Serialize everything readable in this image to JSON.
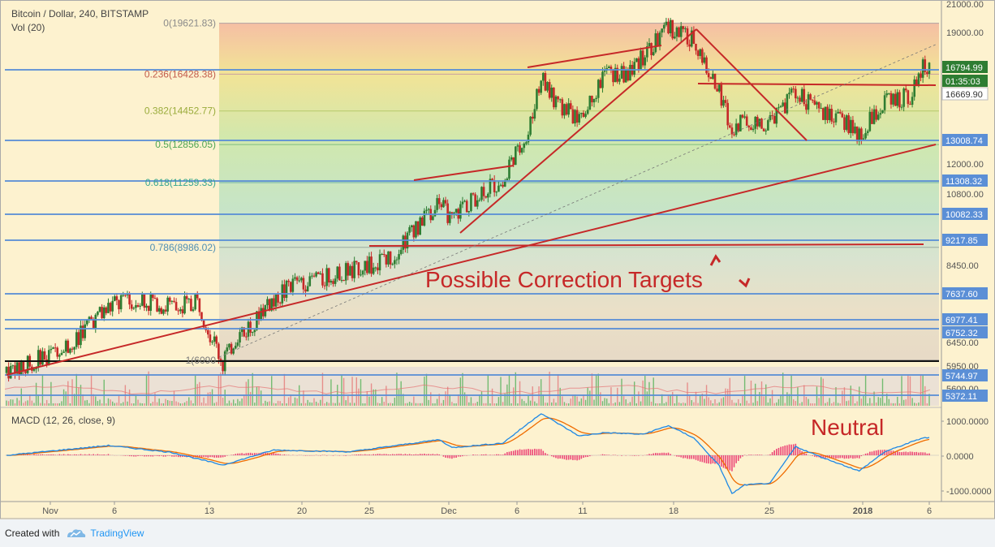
{
  "header": {
    "symbol_line": "Bitcoin / Dollar, 240, BITSTAMP",
    "volume_line": "Vol (20)",
    "macd_line": "MACD (12, 26, close, 9)"
  },
  "colors": {
    "background": "#fdf2cf",
    "candle_up": "#2e7d32",
    "candle_down": "#c62828",
    "trendline": "#c62828",
    "level_line": "#5b8fd6",
    "annotation_text": "#c62828",
    "macd_line": "#1e88e5",
    "signal_line": "#ef6c00",
    "histogram": "#e91e63"
  },
  "footer": {
    "created_with": "Created with",
    "brand": "TradingView"
  },
  "chart_data": {
    "type": "candlestick",
    "symbol": "Bitcoin / Dollar",
    "interval": "240",
    "exchange": "BITSTAMP",
    "price_axis": {
      "range": [
        5300,
        21000
      ],
      "ticks": [
        "21000.00",
        "19000.00",
        "16669.90",
        "12000.00",
        "10800.00",
        "8450.00",
        "6450.00",
        "5950.00",
        "5600.00"
      ]
    },
    "time_axis": {
      "ticks": [
        "Nov",
        "6",
        "13",
        "20",
        "25",
        "Dec",
        "6",
        "11",
        "18",
        "25",
        "2018",
        "6"
      ]
    },
    "price_waypoints": [
      {
        "date": "2017-10-26",
        "price": 5800
      },
      {
        "date": "2017-10-31",
        "price": 6400
      },
      {
        "date": "2017-11-03",
        "price": 7300
      },
      {
        "date": "2017-11-05",
        "price": 7500
      },
      {
        "date": "2017-11-08",
        "price": 7300
      },
      {
        "date": "2017-11-10",
        "price": 7400
      },
      {
        "date": "2017-11-12",
        "price": 6000
      },
      {
        "date": "2017-11-13",
        "price": 6500
      },
      {
        "date": "2017-11-17",
        "price": 7800
      },
      {
        "date": "2017-11-20",
        "price": 8100
      },
      {
        "date": "2017-11-25",
        "price": 8600
      },
      {
        "date": "2017-11-28",
        "price": 10000
      },
      {
        "date": "2017-11-29",
        "price": 10600
      },
      {
        "date": "2017-11-30",
        "price": 9800
      },
      {
        "date": "2017-12-01",
        "price": 10400
      },
      {
        "date": "2017-12-04",
        "price": 11400
      },
      {
        "date": "2017-12-06",
        "price": 13500
      },
      {
        "date": "2017-12-07",
        "price": 16300
      },
      {
        "date": "2017-12-08",
        "price": 15000
      },
      {
        "date": "2017-12-10",
        "price": 14000
      },
      {
        "date": "2017-12-12",
        "price": 16400
      },
      {
        "date": "2017-12-14",
        "price": 16500
      },
      {
        "date": "2017-12-15",
        "price": 17500
      },
      {
        "date": "2017-12-17",
        "price": 19300
      },
      {
        "date": "2017-12-19",
        "price": 18500
      },
      {
        "date": "2017-12-21",
        "price": 15500
      },
      {
        "date": "2017-12-22",
        "price": 13500
      },
      {
        "date": "2017-12-23",
        "price": 14000
      },
      {
        "date": "2017-12-25",
        "price": 13800
      },
      {
        "date": "2017-12-27",
        "price": 15500
      },
      {
        "date": "2017-12-29",
        "price": 14300
      },
      {
        "date": "2017-12-31",
        "price": 13900
      },
      {
        "date": "2018-01-01",
        "price": 13300
      },
      {
        "date": "2018-01-03",
        "price": 15000
      },
      {
        "date": "2018-01-05",
        "price": 15200
      },
      {
        "date": "2018-01-06",
        "price": 16800
      }
    ],
    "fib_levels": [
      {
        "label": "0(19621.83)",
        "price": 19621.83
      },
      {
        "label": "0.236(16428.38)",
        "price": 16428.38
      },
      {
        "label": "0.382(14452.77)",
        "price": 14452.77
      },
      {
        "label": "0.5(12856.05)",
        "price": 12856.05
      },
      {
        "label": "0.618(11259.33)",
        "price": 11259.33
      },
      {
        "label": "0.786(8986.02)",
        "price": 8986.02
      },
      {
        "label": "1(6090",
        "price": 6090
      }
    ],
    "price_labels": [
      {
        "value": "16794.99",
        "kind": "last"
      },
      {
        "value": "01:35:03",
        "kind": "countdown"
      },
      {
        "value": "16669.90",
        "kind": "level"
      },
      {
        "value": "13008.74",
        "kind": "level"
      },
      {
        "value": "11308.32",
        "kind": "level"
      },
      {
        "value": "10082.33",
        "kind": "level"
      },
      {
        "value": "9217.85",
        "kind": "level"
      },
      {
        "value": "7637.60",
        "kind": "level"
      },
      {
        "value": "6977.41",
        "kind": "level"
      },
      {
        "value": "6752.32",
        "kind": "level"
      },
      {
        "value": "5744.97",
        "kind": "level"
      },
      {
        "value": "5372.11",
        "kind": "level"
      }
    ],
    "annotations": [
      {
        "text": "Possible Correction Targets"
      },
      {
        "text": "Neutral"
      }
    ],
    "macd": {
      "ticks": [
        "1000.0000",
        "0.0000",
        "-1000.0000"
      ],
      "range": [
        -1200,
        1200
      ],
      "macd_waypoints": [
        {
          "date": "2017-10-26",
          "value": 0
        },
        {
          "date": "2017-11-03",
          "value": 280
        },
        {
          "date": "2017-11-08",
          "value": 80
        },
        {
          "date": "2017-11-12",
          "value": -280
        },
        {
          "date": "2017-11-16",
          "value": 150
        },
        {
          "date": "2017-11-22",
          "value": 100
        },
        {
          "date": "2017-11-29",
          "value": 450
        },
        {
          "date": "2017-11-30",
          "value": 220
        },
        {
          "date": "2017-12-04",
          "value": 350
        },
        {
          "date": "2017-12-07",
          "value": 1200
        },
        {
          "date": "2017-12-10",
          "value": 550
        },
        {
          "date": "2017-12-12",
          "value": 650
        },
        {
          "date": "2017-12-15",
          "value": 600
        },
        {
          "date": "2017-12-17",
          "value": 850
        },
        {
          "date": "2017-12-19",
          "value": 500
        },
        {
          "date": "2017-12-21",
          "value": -300
        },
        {
          "date": "2017-12-22",
          "value": -1100
        },
        {
          "date": "2017-12-23",
          "value": -850
        },
        {
          "date": "2017-12-25",
          "value": -800
        },
        {
          "date": "2017-12-27",
          "value": 250
        },
        {
          "date": "2017-12-29",
          "value": -50
        },
        {
          "date": "2018-01-01",
          "value": -450
        },
        {
          "date": "2018-01-03",
          "value": 100
        },
        {
          "date": "2018-01-06",
          "value": 500
        }
      ]
    }
  }
}
